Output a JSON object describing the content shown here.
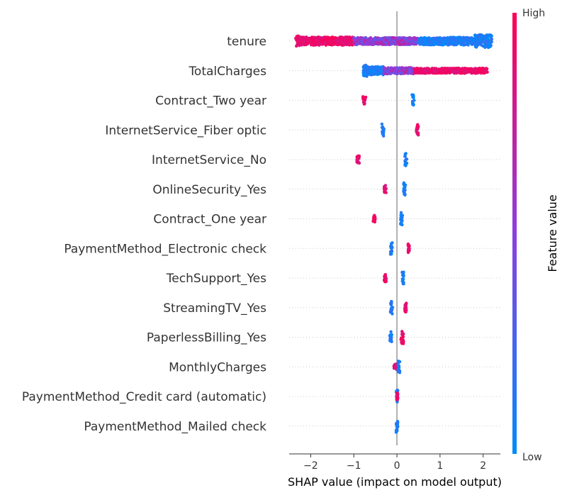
{
  "chart_data": {
    "type": "scatter",
    "subtype": "shap-beeswarm-summary",
    "title": "",
    "xlabel": "SHAP value (impact on model output)",
    "ylabel": "",
    "xlim": [
      -2.5,
      2.4
    ],
    "x_ticks": [
      -2,
      -1,
      0,
      1,
      2
    ],
    "x_tick_labels": [
      "−2",
      "−1",
      "0",
      "1",
      "2"
    ],
    "zero_line": 0,
    "grid": "dotted horizontal guides per feature",
    "colorbar": {
      "title": "Feature value",
      "high_label": "High",
      "low_label": "Low",
      "high_color": "#ff0052",
      "mid_color": "#8c3fe0",
      "low_color": "#008bfb",
      "placement": "right"
    },
    "features": [
      {
        "name": "tenure",
        "clusters": [
          {
            "x_min": -2.35,
            "x_max": -2.25,
            "color": "high",
            "width": 1.0
          },
          {
            "x_min": -2.25,
            "x_max": -1.0,
            "color": "high",
            "width": 0.65
          },
          {
            "x_min": -1.0,
            "x_max": 0.5,
            "color": "mid",
            "width": 0.55
          },
          {
            "x_min": 0.5,
            "x_max": 1.8,
            "color": "low",
            "width": 0.6
          },
          {
            "x_min": 1.8,
            "x_max": 2.2,
            "color": "low",
            "width": 1.0
          }
        ]
      },
      {
        "name": "TotalCharges",
        "clusters": [
          {
            "x_min": -0.78,
            "x_max": -0.7,
            "color": "low",
            "width": 1.0
          },
          {
            "x_min": -0.7,
            "x_max": -0.3,
            "color": "low",
            "width": 0.65
          },
          {
            "x_min": -0.3,
            "x_max": 0.4,
            "color": "mid",
            "width": 0.5
          },
          {
            "x_min": 0.4,
            "x_max": 2.1,
            "color": "high",
            "width": 0.4
          }
        ]
      },
      {
        "name": "Contract_Two year",
        "clusters": [
          {
            "x_min": -0.79,
            "x_max": -0.72,
            "color": "high",
            "width": 0.6
          },
          {
            "x_min": 0.35,
            "x_max": 0.4,
            "color": "low",
            "width": 1.0
          }
        ]
      },
      {
        "name": "InternetService_Fiber optic",
        "clusters": [
          {
            "x_min": -0.35,
            "x_max": -0.3,
            "color": "low",
            "width": 1.0
          },
          {
            "x_min": 0.45,
            "x_max": 0.5,
            "color": "high",
            "width": 0.9
          }
        ]
      },
      {
        "name": "InternetService_No",
        "clusters": [
          {
            "x_min": -0.93,
            "x_max": -0.87,
            "color": "high",
            "width": 0.6
          },
          {
            "x_min": 0.18,
            "x_max": 0.23,
            "color": "low",
            "width": 1.0
          }
        ]
      },
      {
        "name": "OnlineSecurity_Yes",
        "clusters": [
          {
            "x_min": -0.3,
            "x_max": -0.25,
            "color": "high",
            "width": 0.6
          },
          {
            "x_min": 0.15,
            "x_max": 0.2,
            "color": "low",
            "width": 1.0
          }
        ]
      },
      {
        "name": "Contract_One year",
        "clusters": [
          {
            "x_min": -0.55,
            "x_max": -0.5,
            "color": "high",
            "width": 0.55
          },
          {
            "x_min": 0.08,
            "x_max": 0.13,
            "color": "low",
            "width": 1.0
          }
        ]
      },
      {
        "name": "PaymentMethod_Electronic check",
        "clusters": [
          {
            "x_min": -0.15,
            "x_max": -0.1,
            "color": "low",
            "width": 1.0
          },
          {
            "x_min": 0.25,
            "x_max": 0.3,
            "color": "high",
            "width": 0.7
          }
        ]
      },
      {
        "name": "TechSupport_Yes",
        "clusters": [
          {
            "x_min": -0.3,
            "x_max": -0.25,
            "color": "high",
            "width": 0.6
          },
          {
            "x_min": 0.12,
            "x_max": 0.17,
            "color": "low",
            "width": 1.0
          }
        ]
      },
      {
        "name": "StreamingTV_Yes",
        "clusters": [
          {
            "x_min": -0.15,
            "x_max": -0.1,
            "color": "low",
            "width": 1.0
          },
          {
            "x_min": 0.18,
            "x_max": 0.22,
            "color": "high",
            "width": 0.7
          }
        ]
      },
      {
        "name": "PaperlessBilling_Yes",
        "clusters": [
          {
            "x_min": -0.17,
            "x_max": -0.12,
            "color": "low",
            "width": 0.9
          },
          {
            "x_min": 0.09,
            "x_max": 0.16,
            "color": "high",
            "width": 1.0
          }
        ]
      },
      {
        "name": "MonthlyCharges",
        "clusters": [
          {
            "x_min": -0.07,
            "x_max": 0.02,
            "color": "high",
            "width": 0.45
          },
          {
            "x_min": 0.02,
            "x_max": 0.07,
            "color": "low",
            "width": 0.9
          }
        ]
      },
      {
        "name": "PaymentMethod_Credit card (automatic)",
        "clusters": [
          {
            "x_min": -0.02,
            "x_max": 0.02,
            "color": "low",
            "width": 1.0
          },
          {
            "x_min": -0.01,
            "x_max": 0.01,
            "color": "high",
            "width": 0.6
          }
        ]
      },
      {
        "name": "PaymentMethod_Mailed check",
        "clusters": [
          {
            "x_min": -0.02,
            "x_max": 0.02,
            "color": "low",
            "width": 1.0
          }
        ]
      }
    ]
  }
}
